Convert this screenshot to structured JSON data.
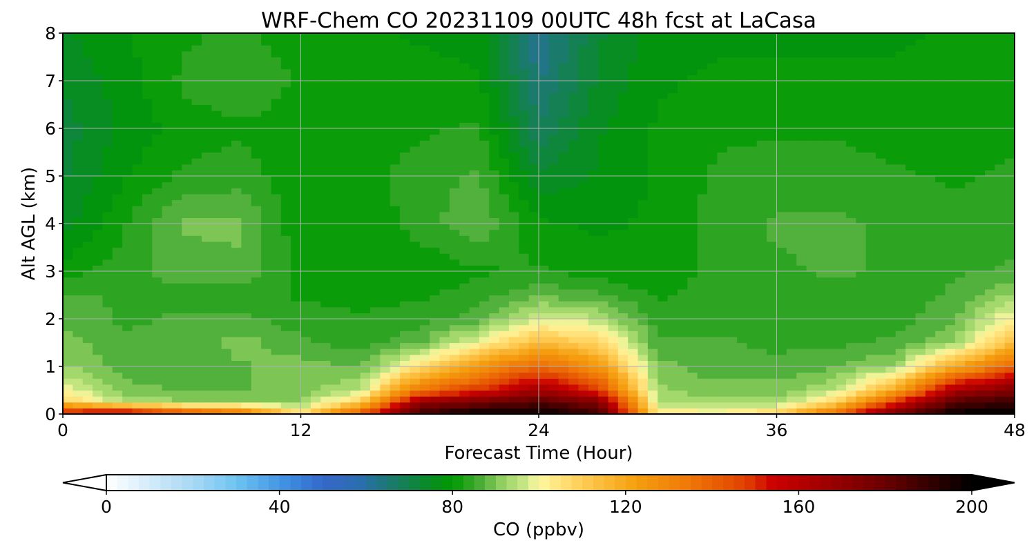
{
  "chart_data": {
    "type": "heatmap",
    "title": "WRF-Chem CO  20231109 00UTC 48h fcst at LaCasa",
    "xlabel": "Forecast Time (Hour)",
    "ylabel": "Alt AGL (km)",
    "xlim": [
      0,
      48
    ],
    "ylim": [
      0,
      8
    ],
    "xticks": [
      0,
      12,
      24,
      36,
      48
    ],
    "yticks": [
      0,
      1,
      2,
      3,
      4,
      5,
      6,
      7,
      8
    ],
    "grid": true,
    "colorbar": {
      "label": "CO  (ppbv)",
      "min": 0,
      "max": 200,
      "ticks": [
        0,
        40,
        80,
        120,
        160,
        200
      ],
      "extend": "both",
      "orientation": "horizontal",
      "placement": "bottom"
    },
    "field": {
      "x": [
        0,
        3,
        6,
        9,
        12,
        15,
        18,
        21,
        24,
        27,
        30,
        33,
        36,
        39,
        42,
        45,
        48
      ],
      "y": [
        0,
        0.25,
        0.5,
        1,
        1.5,
        2,
        2.5,
        3,
        4,
        5,
        6,
        7,
        8
      ],
      "values": [
        [
          160,
          170,
          150,
          140,
          105,
          145,
          190,
          200,
          200,
          190,
          105,
          102,
          110,
          140,
          180,
          200,
          200
        ],
        [
          110,
          95,
          92,
          92,
          92,
          110,
          170,
          178,
          185,
          175,
          95,
          92,
          93,
          108,
          150,
          185,
          190
        ],
        [
          100,
          90,
          88,
          88,
          90,
          95,
          135,
          150,
          165,
          150,
          92,
          90,
          90,
          95,
          120,
          165,
          175
        ],
        [
          92,
          87,
          86,
          88,
          90,
          88,
          105,
          125,
          140,
          125,
          90,
          86,
          86,
          88,
          92,
          120,
          140
        ],
        [
          90,
          86,
          86,
          90,
          86,
          84,
          88,
          100,
          115,
          108,
          86,
          86,
          85,
          85,
          86,
          92,
          115
        ],
        [
          88,
          85,
          86,
          86,
          84,
          83,
          84,
          87,
          98,
          95,
          84,
          84,
          84,
          84,
          84,
          88,
          102
        ],
        [
          86,
          85,
          84,
          84,
          82,
          81,
          82,
          84,
          88,
          86,
          82,
          84,
          84,
          84,
          84,
          86,
          92
        ],
        [
          81,
          84,
          87,
          88,
          82,
          80,
          80,
          82,
          83,
          81,
          80,
          84,
          85,
          86,
          85,
          85,
          86
        ],
        [
          75,
          82,
          89,
          89,
          80,
          80,
          84,
          88,
          80,
          79,
          80,
          84,
          86,
          86,
          85,
          84,
          84
        ],
        [
          73,
          79,
          83,
          84,
          80,
          81,
          84,
          86,
          74,
          77,
          80,
          83,
          84,
          84,
          83,
          82,
          83
        ],
        [
          72,
          77,
          81,
          82,
          81,
          81,
          82,
          83,
          68,
          76,
          80,
          82,
          82,
          82,
          81,
          81,
          82
        ],
        [
          74,
          78,
          83,
          85,
          82,
          81,
          81,
          80,
          64,
          74,
          79,
          80,
          80,
          80,
          80,
          81,
          81
        ],
        [
          76,
          79,
          82,
          83,
          81,
          80,
          79,
          78,
          62,
          73,
          78,
          79,
          79,
          79,
          79,
          80,
          80
        ]
      ]
    }
  },
  "colors": {
    "stops": [
      [
        0,
        "#ffffff"
      ],
      [
        20,
        "#a8d8f4"
      ],
      [
        30,
        "#6ec4f2"
      ],
      [
        42,
        "#3d8ee0"
      ],
      [
        50,
        "#3468c8"
      ],
      [
        58,
        "#2d6db4"
      ],
      [
        66,
        "#1a7a6c"
      ],
      [
        74,
        "#0a8a2a"
      ],
      [
        80,
        "#009900"
      ],
      [
        86,
        "#44aa33"
      ],
      [
        92,
        "#99d466"
      ],
      [
        97,
        "#cce888"
      ],
      [
        100,
        "#fff8a0"
      ],
      [
        110,
        "#ffcc55"
      ],
      [
        122,
        "#f5a010"
      ],
      [
        134,
        "#f07a08"
      ],
      [
        148,
        "#e04000"
      ],
      [
        154,
        "#cc0000"
      ],
      [
        166,
        "#a00000"
      ],
      [
        180,
        "#6a0000"
      ],
      [
        192,
        "#2a0000"
      ],
      [
        200,
        "#000000"
      ]
    ],
    "grid": "#b0b0b0",
    "frame": "#000000"
  }
}
